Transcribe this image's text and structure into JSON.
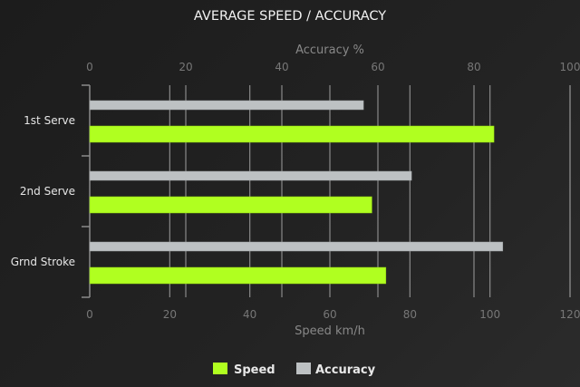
{
  "chart_data": {
    "type": "bar",
    "orientation": "horizontal",
    "title": "AVERAGE SPEED / ACCURACY",
    "categories": [
      "1st Serve",
      "2nd Serve",
      "Grnd Stroke"
    ],
    "series": [
      {
        "name": "Speed",
        "axis": "bottom",
        "color": "#b0ff20",
        "values": [
          101,
          70.5,
          74
        ]
      },
      {
        "name": "Accuracy",
        "axis": "top",
        "color": "#bdc1c3",
        "values": [
          57,
          67,
          86
        ]
      }
    ],
    "xlabel_bottom": "Speed km/h",
    "xlim_bottom": [
      0,
      120
    ],
    "ticks_bottom": [
      "0",
      "20",
      "40",
      "60",
      "80",
      "100",
      "120"
    ],
    "xlabel_top": "Accuracy %",
    "xlim_top": [
      0,
      100
    ],
    "ticks_top": [
      "0",
      "20",
      "40",
      "60",
      "80",
      "100"
    ],
    "grid": true,
    "legend_position": "bottom"
  }
}
